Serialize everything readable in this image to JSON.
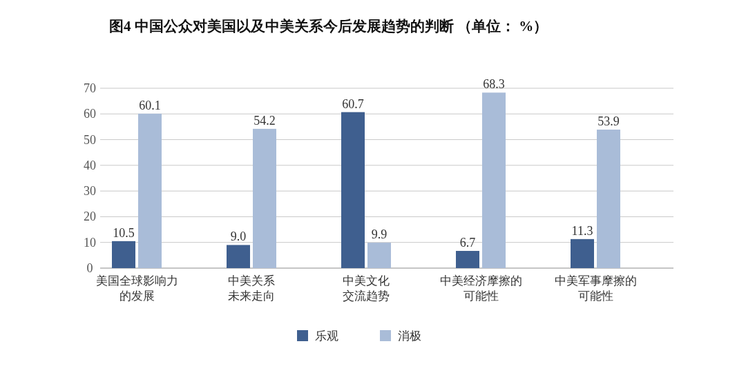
{
  "chart_data": {
    "type": "bar",
    "title": "图4 中国公众对美国以及中美关系今后发展趋势的判断 （单位： %）",
    "categories": [
      "美国全球影响力的发展",
      "中美关系未来走向",
      "中美文化交流趋势",
      "中美经济摩擦的可能性",
      "中美军事摩擦的可能性"
    ],
    "series": [
      {
        "name": "乐观",
        "color": "#3f5f8f",
        "values": [
          10.5,
          9.0,
          60.7,
          6.7,
          11.3
        ]
      },
      {
        "name": "消极",
        "color": "#a9bcd8",
        "values": [
          60.1,
          54.2,
          9.9,
          68.3,
          53.9
        ]
      }
    ],
    "ylim": [
      0,
      70
    ],
    "yticks": [
      0,
      10,
      20,
      30,
      40,
      50,
      60,
      70
    ],
    "value_labels": [
      [
        "10.5",
        "9.0",
        "60.7",
        "6.7",
        "11.3"
      ],
      [
        "60.1",
        "54.2",
        "9.9",
        "68.3",
        "53.9"
      ]
    ],
    "grid": "y",
    "legend": "bottom"
  }
}
